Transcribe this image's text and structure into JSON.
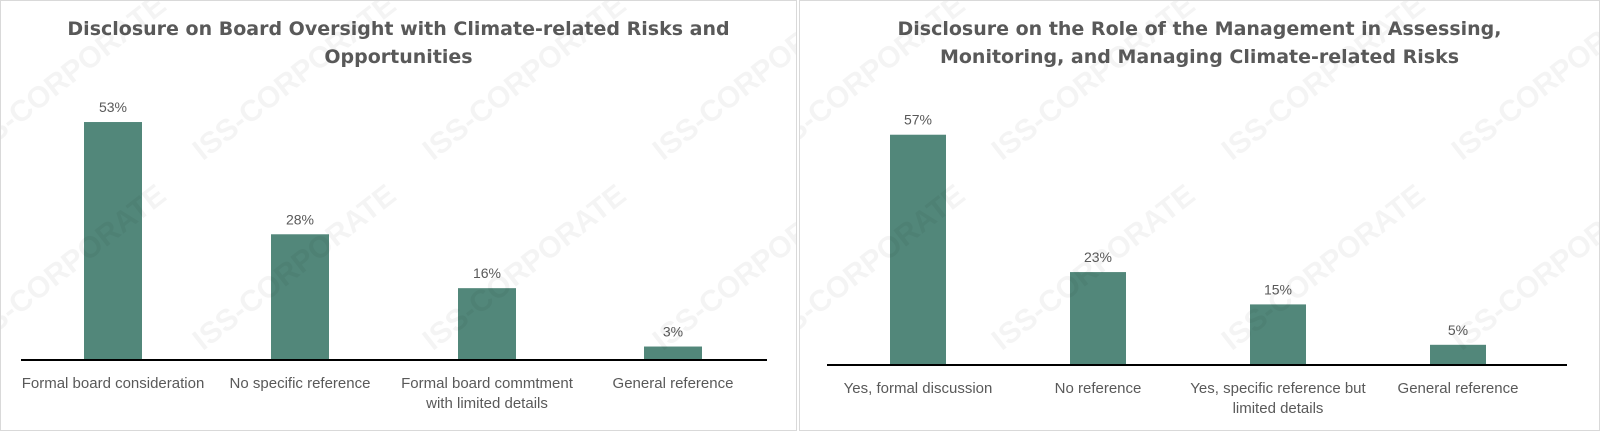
{
  "colors": {
    "bar": "#52877a",
    "axis": "#000000",
    "text": "#595959",
    "border": "#d9d9d9"
  },
  "watermark": "ISS-CORPORATE",
  "chart_data": [
    {
      "type": "bar",
      "title_lines": [
        "Disclosure on Board Oversight with Climate-related Risks and",
        "Opportunities"
      ],
      "categories": [
        [
          "Formal board consideration"
        ],
        [
          "No specific reference"
        ],
        [
          "Formal board commtment",
          "with limited details"
        ],
        [
          "General reference"
        ]
      ],
      "values": [
        53,
        28,
        16,
        3
      ],
      "data_labels": [
        "53%",
        "28%",
        "16%",
        "3%"
      ],
      "ylim": [
        0,
        60
      ],
      "grid": false,
      "xlabel": "",
      "ylabel": ""
    },
    {
      "type": "bar",
      "title_lines": [
        "Disclosure on the Role of the Management in Assessing,",
        "Monitoring, and Managing Climate-related Risks"
      ],
      "categories": [
        [
          "Yes, formal discussion"
        ],
        [
          "No reference"
        ],
        [
          "Yes, specific reference but",
          "limited details"
        ],
        [
          "General reference"
        ]
      ],
      "values": [
        57,
        23,
        15,
        5
      ],
      "data_labels": [
        "57%",
        "23%",
        "15%",
        "5%"
      ],
      "ylim": [
        0,
        60
      ],
      "grid": false,
      "xlabel": "",
      "ylabel": ""
    }
  ]
}
